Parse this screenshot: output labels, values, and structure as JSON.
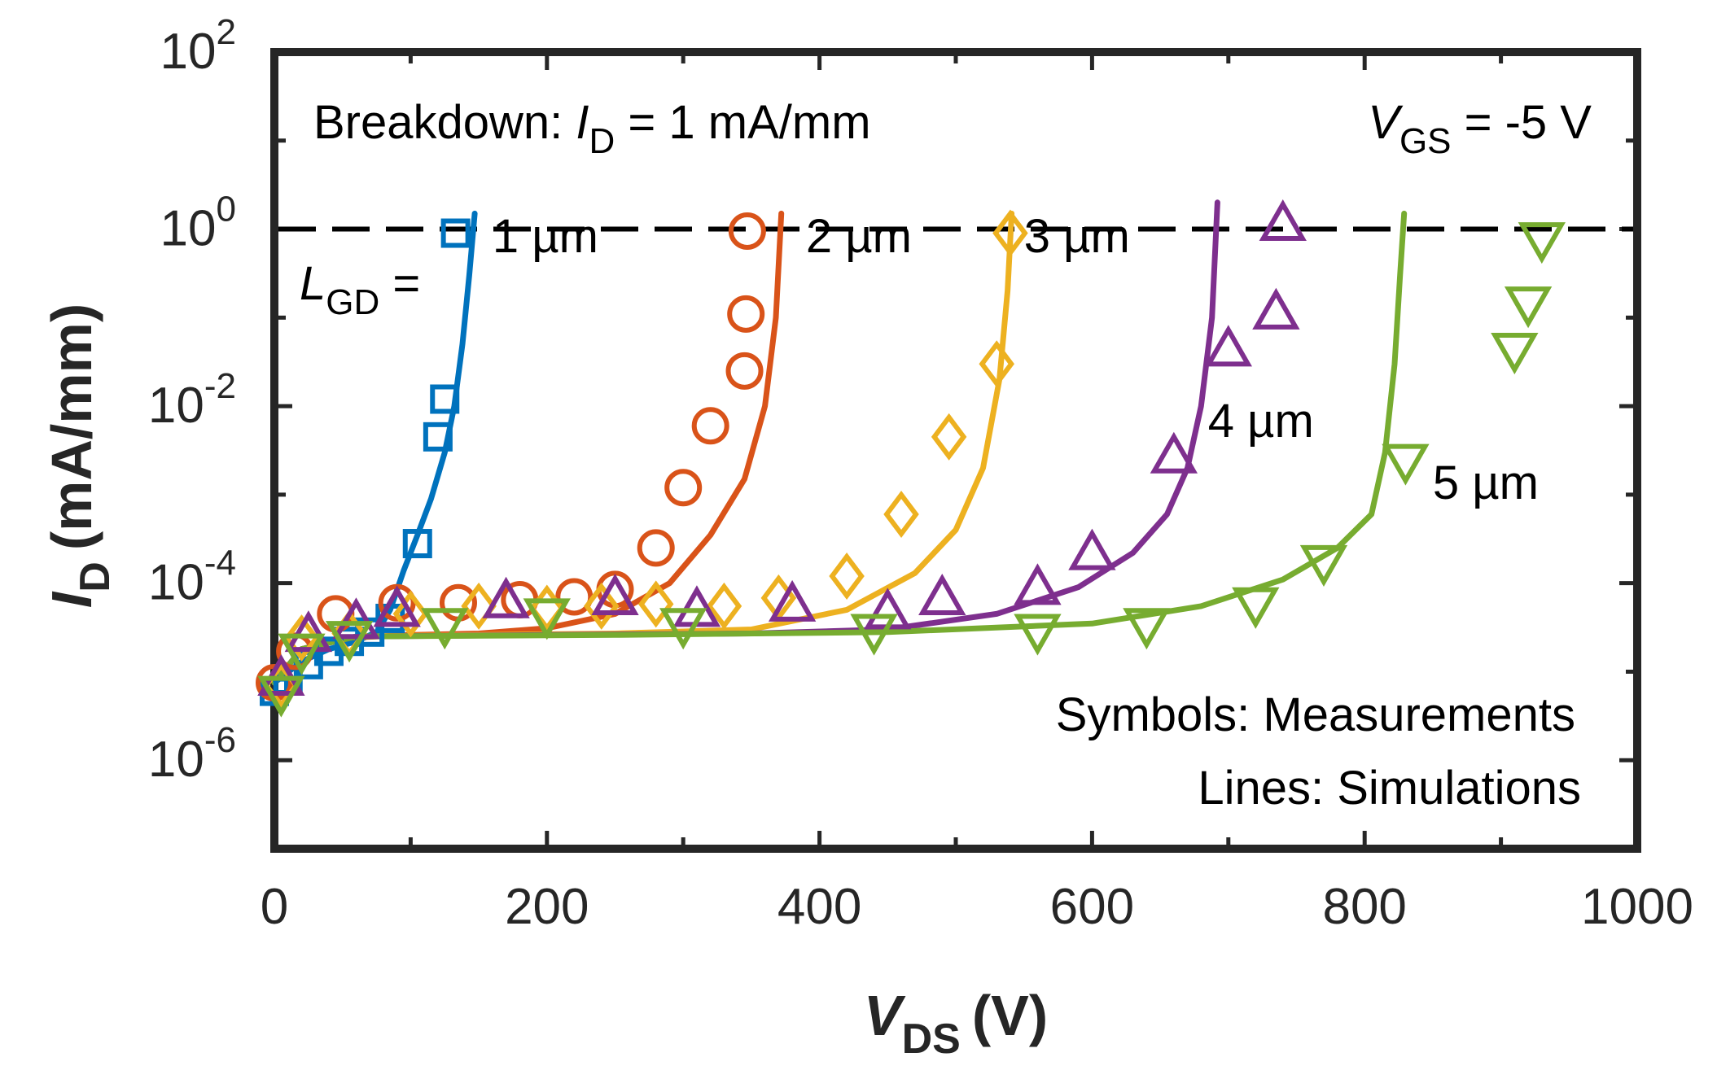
{
  "chart_data": {
    "type": "line",
    "title": "",
    "xlabel": {
      "main": "V",
      "sub": "DS",
      "unit": "(V)"
    },
    "ylabel": {
      "main": "I",
      "sub": "D",
      "unit": "(mA/mm)"
    },
    "xlim": [
      0,
      1000
    ],
    "ylim_log10": [
      -7,
      2
    ],
    "x_ticks": [
      "0",
      "200",
      "400",
      "600",
      "800",
      "1000"
    ],
    "y_ticks": [
      {
        "base": "10",
        "exp": "2",
        "log": 2
      },
      {
        "base": "10",
        "exp": "0",
        "log": 0
      },
      {
        "base": "10",
        "exp": "-2",
        "log": -2
      },
      {
        "base": "10",
        "exp": "-4",
        "log": -4
      },
      {
        "base": "10",
        "exp": "-6",
        "log": -6
      }
    ],
    "grid": false,
    "threshold": {
      "value": 1,
      "label_prefix": "Breakdown: ",
      "label_var": "I",
      "label_sub": "D",
      "label_suffix": " = 1 mA/mm"
    },
    "condition": {
      "var": "V",
      "sub": "GS",
      "text": " = -5 V"
    },
    "lgd_label": {
      "var": "L",
      "sub": "GD",
      "text": " ="
    },
    "notes": [
      "Symbols: Measurements",
      "Lines: Simulations"
    ],
    "series": [
      {
        "name": "1 µm",
        "color": "#0072BD",
        "marker": "square",
        "label_pos": [
          160,
          0.55
        ],
        "measured": [
          [
            0,
            6e-06
          ],
          [
            10,
            8e-06
          ],
          [
            25,
            1.2e-05
          ],
          [
            40,
            1.7e-05
          ],
          [
            55,
            2.2e-05
          ],
          [
            70,
            2.8e-05
          ],
          [
            85,
            4e-05
          ],
          [
            105,
            0.00028
          ],
          [
            120,
            0.0045
          ],
          [
            125,
            0.012
          ],
          [
            133,
            0.9
          ]
        ],
        "simulated": [
          [
            0,
            7.5e-06
          ],
          [
            20,
            1.3e-05
          ],
          [
            40,
            1.8e-05
          ],
          [
            60,
            2.2e-05
          ],
          [
            75,
            2.8e-05
          ],
          [
            85,
            5e-05
          ],
          [
            95,
            0.00014
          ],
          [
            105,
            0.00035
          ],
          [
            115,
            0.0009
          ],
          [
            125,
            0.003
          ],
          [
            132,
            0.01
          ],
          [
            138,
            0.05
          ],
          [
            143,
            0.3
          ],
          [
            147,
            1.5
          ]
        ]
      },
      {
        "name": "2 µm",
        "color": "#D95319",
        "marker": "circle",
        "label_pos": [
          390,
          0.55
        ],
        "measured": [
          [
            0,
            7.5e-06
          ],
          [
            15,
            1.7e-05
          ],
          [
            45,
            4.5e-05
          ],
          [
            90,
            6e-05
          ],
          [
            135,
            6e-05
          ],
          [
            180,
            6.5e-05
          ],
          [
            220,
            7e-05
          ],
          [
            250,
            8.5e-05
          ],
          [
            280,
            0.00025
          ],
          [
            300,
            0.0012
          ],
          [
            320,
            0.006
          ],
          [
            345,
            0.025
          ],
          [
            346,
            0.11
          ],
          [
            347,
            0.95
          ]
        ],
        "simulated": [
          [
            0,
            7.5e-06
          ],
          [
            20,
            1.8e-05
          ],
          [
            50,
            2.4e-05
          ],
          [
            100,
            2.6e-05
          ],
          [
            150,
            2.7e-05
          ],
          [
            200,
            3.1e-05
          ],
          [
            250,
            4.5e-05
          ],
          [
            290,
            0.0001
          ],
          [
            320,
            0.00035
          ],
          [
            345,
            0.0015
          ],
          [
            360,
            0.01
          ],
          [
            368,
            0.1
          ],
          [
            372,
            1.5
          ]
        ]
      },
      {
        "name": "3 µm",
        "color": "#EDB120",
        "marker": "diamond",
        "label_pos": [
          550,
          0.55
        ],
        "measured": [
          [
            5,
            7e-06
          ],
          [
            20,
            2.4e-05
          ],
          [
            55,
            2.7e-05
          ],
          [
            100,
            4.5e-05
          ],
          [
            150,
            5.5e-05
          ],
          [
            200,
            5.2e-05
          ],
          [
            240,
            5.5e-05
          ],
          [
            280,
            5.8e-05
          ],
          [
            330,
            5.5e-05
          ],
          [
            370,
            6.8e-05
          ],
          [
            420,
            0.00012
          ],
          [
            460,
            0.0006
          ],
          [
            495,
            0.0045
          ],
          [
            530,
            0.03
          ],
          [
            540,
            0.9
          ]
        ],
        "simulated": [
          [
            0,
            7.5e-06
          ],
          [
            20,
            1.8e-05
          ],
          [
            60,
            2.5e-05
          ],
          [
            150,
            2.6e-05
          ],
          [
            250,
            2.7e-05
          ],
          [
            350,
            3e-05
          ],
          [
            420,
            5e-05
          ],
          [
            470,
            0.00013
          ],
          [
            500,
            0.0004
          ],
          [
            520,
            0.002
          ],
          [
            532,
            0.02
          ],
          [
            538,
            0.2
          ],
          [
            541,
            1.5
          ]
        ]
      },
      {
        "name": "4 µm",
        "color": "#7E2F8E",
        "marker": "triangle-up",
        "label_pos": [
          685,
          0.0045
        ],
        "measured": [
          [
            5,
            8e-06
          ],
          [
            25,
            2.5e-05
          ],
          [
            60,
            3.5e-05
          ],
          [
            90,
            4.8e-05
          ],
          [
            170,
            6e-05
          ],
          [
            250,
            6.5e-05
          ],
          [
            310,
            4.8e-05
          ],
          [
            380,
            5.5e-05
          ],
          [
            450,
            4.5e-05
          ],
          [
            490,
            6.5e-05
          ],
          [
            560,
            8.5e-05
          ],
          [
            600,
            0.00021
          ],
          [
            660,
            0.0026
          ],
          [
            700,
            0.042
          ],
          [
            735,
            0.11
          ],
          [
            740,
            1.1
          ]
        ],
        "simulated": [
          [
            0,
            7.5e-06
          ],
          [
            20,
            1.8e-05
          ],
          [
            60,
            2.5e-05
          ],
          [
            200,
            2.6e-05
          ],
          [
            350,
            2.7e-05
          ],
          [
            450,
            3e-05
          ],
          [
            530,
            4.5e-05
          ],
          [
            590,
            9e-05
          ],
          [
            630,
            0.00022
          ],
          [
            655,
            0.0006
          ],
          [
            670,
            0.002
          ],
          [
            680,
            0.01
          ],
          [
            688,
            0.1
          ],
          [
            692,
            2
          ]
        ]
      },
      {
        "name": "5 µm",
        "color": "#77AC30",
        "marker": "triangle-down",
        "label_pos": [
          850,
          0.0009
        ],
        "measured": [
          [
            5,
            6e-06
          ],
          [
            20,
            1.8e-05
          ],
          [
            55,
            2.5e-05
          ],
          [
            125,
            3.5e-05
          ],
          [
            200,
            4.5e-05
          ],
          [
            300,
            3.5e-05
          ],
          [
            440,
            3e-05
          ],
          [
            560,
            3e-05
          ],
          [
            640,
            3.5e-05
          ],
          [
            720,
            6e-05
          ],
          [
            770,
            0.00018
          ],
          [
            830,
            0.0025
          ],
          [
            910,
            0.045
          ],
          [
            920,
            0.15
          ],
          [
            930,
            0.8
          ]
        ],
        "simulated": [
          [
            0,
            7.5e-06
          ],
          [
            20,
            1.8e-05
          ],
          [
            60,
            2.5e-05
          ],
          [
            250,
            2.6e-05
          ],
          [
            450,
            2.8e-05
          ],
          [
            600,
            3.5e-05
          ],
          [
            680,
            5.5e-05
          ],
          [
            740,
            0.00011
          ],
          [
            780,
            0.00025
          ],
          [
            805,
            0.0006
          ],
          [
            815,
            0.003
          ],
          [
            822,
            0.03
          ],
          [
            826,
            0.3
          ],
          [
            829,
            1.5
          ]
        ]
      }
    ]
  }
}
